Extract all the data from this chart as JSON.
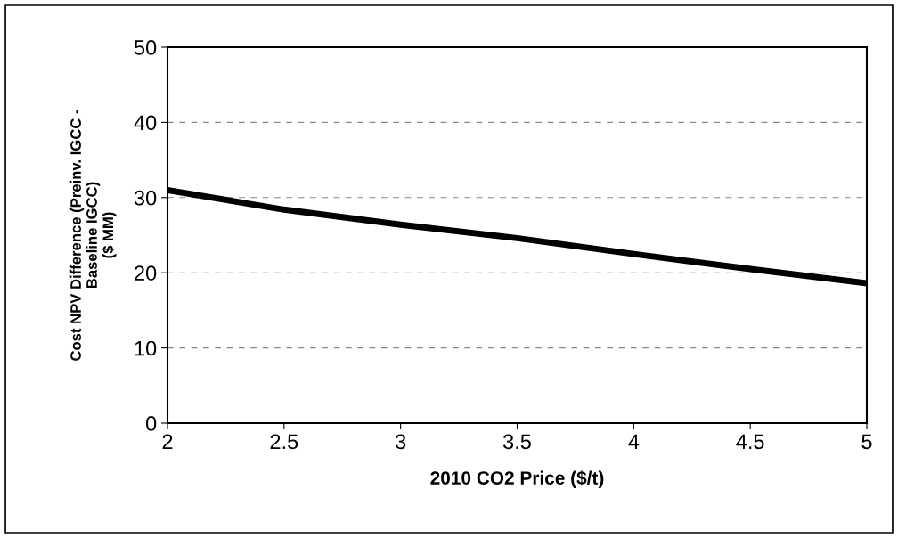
{
  "chart_data": {
    "type": "line",
    "xlabel": "2010 CO2 Price ($/t)",
    "ylabel": "Cost NPV Difference (Preinv. IGCC -\nBaseline IGCC)\n($ MM)",
    "x": [
      2,
      2.5,
      3,
      3.5,
      4,
      4.5,
      5
    ],
    "series": [
      {
        "color": "#000000",
        "values": [
          31,
          28.4,
          26.4,
          24.6,
          22.5,
          20.5,
          18.6
        ]
      }
    ],
    "xlim": [
      2,
      5
    ],
    "xticks": [
      2,
      2.5,
      3,
      3.5,
      4,
      4.5,
      5
    ],
    "ylim": [
      0,
      50
    ],
    "yticks": [
      0,
      10,
      20,
      30,
      40,
      50
    ],
    "grid": "y",
    "marker": "none",
    "line_style": "solid"
  }
}
